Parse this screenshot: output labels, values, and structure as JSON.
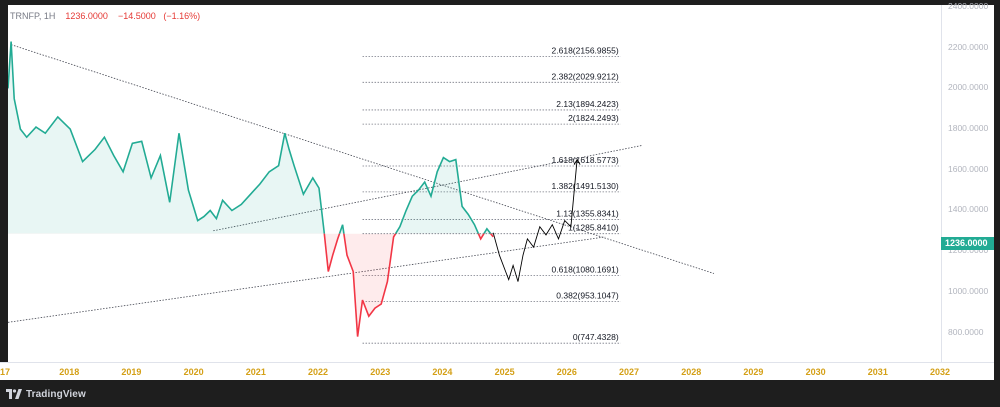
{
  "legend": {
    "symbol": "TRNFP, 1H",
    "last": "1236.0000",
    "change": "−14.5000",
    "change_pct": "(−1.16%)"
  },
  "brand": {
    "name": "TradingView"
  },
  "colors": {
    "up": "#22ab94",
    "down": "#f23645",
    "projection": "#000000",
    "fib_line": "#787b86",
    "price_tag": "#22ab94",
    "year_label": "#d4a017"
  },
  "price_tag": "1236.0000",
  "chart_data": {
    "type": "line",
    "x_axis": {
      "labels": [
        "17",
        "2018",
        "2019",
        "2020",
        "2021",
        "2022",
        "2023",
        "2024",
        "2025",
        "2026",
        "2027",
        "2028",
        "2029",
        "2030",
        "2031",
        "2032"
      ],
      "range": [
        2017.0,
        2032.0
      ]
    },
    "y_axis": {
      "labels": [
        "800.0000",
        "1000.0000",
        "1200.0000",
        "1400.0000",
        "1600.0000",
        "1800.0000",
        "2000.0000",
        "2200.0000",
        "2400.0000"
      ],
      "range": [
        655,
        2410
      ]
    },
    "baseline": 1285.841,
    "series": [
      {
        "color_mode": "baseline",
        "x": [
          2017.0,
          2017.05,
          2017.1,
          2017.2,
          2017.3,
          2017.45,
          2017.6,
          2017.8,
          2018.0,
          2018.2,
          2018.4,
          2018.55,
          2018.7,
          2018.85,
          2019.0,
          2019.15,
          2019.3,
          2019.45,
          2019.6,
          2019.75,
          2019.9,
          2020.05,
          2020.15,
          2020.25,
          2020.35,
          2020.45,
          2020.6,
          2020.75,
          2020.9,
          2021.05,
          2021.2,
          2021.35,
          2021.45,
          2021.52,
          2021.6,
          2021.75,
          2021.9,
          2022.0,
          2022.08,
          2022.15,
          2022.22,
          2022.3,
          2022.38,
          2022.45,
          2022.55,
          2022.62,
          2022.7,
          2022.8,
          2022.9,
          2023.0,
          2023.1,
          2023.2,
          2023.3,
          2023.4,
          2023.5,
          2023.6,
          2023.7,
          2023.8,
          2023.9,
          2024.0,
          2024.1,
          2024.2,
          2024.3,
          2024.4,
          2024.5,
          2024.6,
          2024.7,
          2024.8
        ],
        "y": [
          2000,
          2230,
          1950,
          1800,
          1760,
          1810,
          1780,
          1860,
          1800,
          1640,
          1700,
          1760,
          1670,
          1590,
          1730,
          1740,
          1560,
          1670,
          1440,
          1780,
          1500,
          1350,
          1370,
          1400,
          1360,
          1450,
          1400,
          1430,
          1480,
          1530,
          1590,
          1620,
          1780,
          1700,
          1620,
          1480,
          1560,
          1510,
          1300,
          1100,
          1180,
          1260,
          1330,
          1180,
          1100,
          780,
          960,
          880,
          920,
          940,
          1050,
          1270,
          1320,
          1400,
          1470,
          1500,
          1540,
          1470,
          1590,
          1660,
          1640,
          1650,
          1420,
          1380,
          1330,
          1260,
          1310,
          1270
        ]
      },
      {
        "name": "",
        "color": "projection",
        "x": [
          2024.8,
          2024.9,
          2025.0,
          2025.05,
          2025.12,
          2025.2,
          2025.28,
          2025.35,
          2025.45,
          2025.55,
          2025.65,
          2025.75,
          2025.85,
          2025.95,
          2026.05,
          2026.15
        ],
        "y": [
          1290,
          1180,
          1100,
          1060,
          1130,
          1050,
          1180,
          1260,
          1220,
          1320,
          1280,
          1330,
          1260,
          1350,
          1320,
          1650
        ]
      }
    ],
    "fib_levels": [
      {
        "ratio": "0",
        "price": "747.4328",
        "label": "0(747.4328)"
      },
      {
        "ratio": "0.382",
        "price": "953.1047",
        "label": "0.382(953.1047)"
      },
      {
        "ratio": "0.618",
        "price": "1080.1691",
        "label": "0.618(1080.1691)"
      },
      {
        "ratio": "1",
        "price": "1285.8410",
        "label": "1(1285.8410)"
      },
      {
        "ratio": "1.13",
        "price": "1355.8341",
        "label": "1.13(1355.8341)"
      },
      {
        "ratio": "1.382",
        "price": "1491.5130",
        "label": "1.382(1491.5130)"
      },
      {
        "ratio": "1.618",
        "price": "1618.5773",
        "label": "1.618(1618.5773)"
      },
      {
        "ratio": "2",
        "price": "1824.2493",
        "label": "2(1824.2493)"
      },
      {
        "ratio": "2.13",
        "price": "1894.2423",
        "label": "2.13(1894.2423)"
      },
      {
        "ratio": "2.382",
        "price": "2029.9212",
        "label": "2.382(2029.9212)"
      },
      {
        "ratio": "2.618",
        "price": "2156.9855",
        "label": "2.618(2156.9855)"
      }
    ],
    "fib_x_range": [
      2022.7,
      2026.85
    ],
    "trendlines": [
      {
        "x1": 2017.05,
        "y1": 2215,
        "x2": 2028.35,
        "y2": 1090
      },
      {
        "x1": 2017.0,
        "y1": 850,
        "x2": 2026.6,
        "y2": 1270
      },
      {
        "x1": 2020.3,
        "y1": 1300,
        "x2": 2027.2,
        "y2": 1720
      }
    ],
    "grid": false,
    "legend_position": "top-left"
  }
}
